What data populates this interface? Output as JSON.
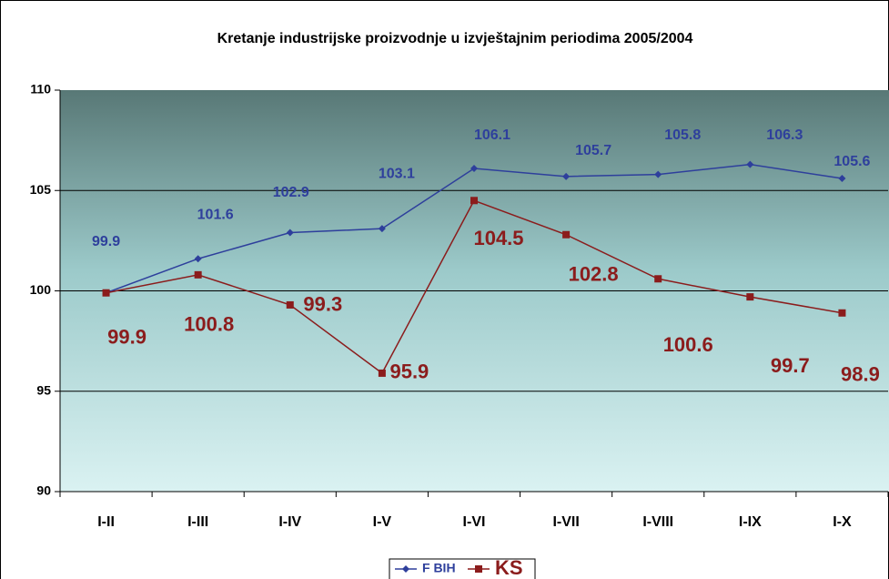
{
  "chart_data": {
    "type": "line",
    "title": "Kretanje industrijske proizvodnje u izvještajnim periodima 2005/2004",
    "categories": [
      "I-II",
      "I-III",
      "I-IV",
      "I-V",
      "I-VI",
      "I-VII",
      "I-VIII",
      "I-IX",
      "I-X"
    ],
    "series": [
      {
        "name": "F BIH",
        "color": "#2e3f9c",
        "values": [
          99.9,
          101.6,
          102.9,
          103.1,
          106.1,
          105.7,
          105.8,
          106.3,
          105.6
        ]
      },
      {
        "name": "KS",
        "color": "#8b1c1c",
        "values": [
          99.9,
          100.8,
          99.3,
          95.9,
          104.5,
          102.8,
          100.6,
          99.7,
          98.9
        ]
      }
    ],
    "ylim": [
      90,
      110
    ],
    "yticks": [
      90,
      95,
      100,
      105,
      110
    ],
    "grid": true,
    "legend": "bottom"
  }
}
